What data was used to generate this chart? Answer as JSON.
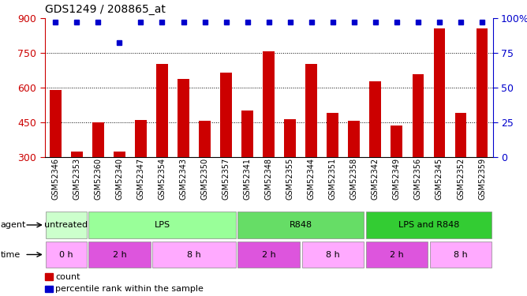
{
  "title": "GDS1249 / 208865_at",
  "samples": [
    "GSM52346",
    "GSM52353",
    "GSM52360",
    "GSM52340",
    "GSM52347",
    "GSM52354",
    "GSM52343",
    "GSM52350",
    "GSM52357",
    "GSM52341",
    "GSM52348",
    "GSM52355",
    "GSM52344",
    "GSM52351",
    "GSM52358",
    "GSM52342",
    "GSM52349",
    "GSM52356",
    "GSM52345",
    "GSM52352",
    "GSM52359"
  ],
  "counts": [
    590,
    322,
    448,
    322,
    460,
    700,
    635,
    455,
    665,
    500,
    755,
    463,
    700,
    490,
    455,
    625,
    435,
    655,
    855,
    490,
    855
  ],
  "percentile_y": [
    97,
    97,
    97,
    82,
    97,
    97,
    97,
    97,
    97,
    97,
    97,
    97,
    97,
    97,
    97,
    97,
    97,
    97,
    97,
    97,
    97
  ],
  "bar_color": "#cc0000",
  "dot_color": "#0000cc",
  "ymin": 300,
  "ymax": 900,
  "yticks_left": [
    300,
    450,
    600,
    750,
    900
  ],
  "yticks_right": [
    0,
    25,
    50,
    75,
    100
  ],
  "yright_labels": [
    "0",
    "25",
    "50",
    "75",
    "100%"
  ],
  "agent_groups": [
    {
      "label": "untreated",
      "start": 0,
      "end": 2,
      "color": "#ccffcc"
    },
    {
      "label": "LPS",
      "start": 2,
      "end": 9,
      "color": "#99ff99"
    },
    {
      "label": "R848",
      "start": 9,
      "end": 15,
      "color": "#66dd66"
    },
    {
      "label": "LPS and R848",
      "start": 15,
      "end": 21,
      "color": "#33cc33"
    }
  ],
  "time_groups": [
    {
      "label": "0 h",
      "start": 0,
      "end": 2,
      "color": "#ffaaff"
    },
    {
      "label": "2 h",
      "start": 2,
      "end": 5,
      "color": "#dd55dd"
    },
    {
      "label": "8 h",
      "start": 5,
      "end": 9,
      "color": "#ffaaff"
    },
    {
      "label": "2 h",
      "start": 9,
      "end": 12,
      "color": "#dd55dd"
    },
    {
      "label": "8 h",
      "start": 12,
      "end": 15,
      "color": "#ffaaff"
    },
    {
      "label": "2 h",
      "start": 15,
      "end": 18,
      "color": "#dd55dd"
    },
    {
      "label": "8 h",
      "start": 18,
      "end": 21,
      "color": "#ffaaff"
    }
  ],
  "legend_count_label": "count",
  "legend_pct_label": "percentile rank within the sample",
  "bg_color": "#ffffff",
  "grid_yticks": [
    450,
    600,
    750
  ],
  "bar_width": 0.55
}
